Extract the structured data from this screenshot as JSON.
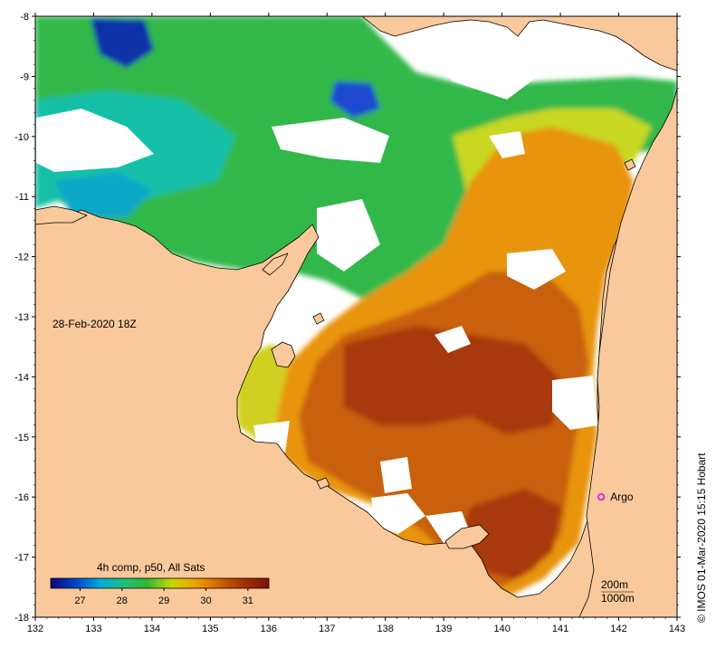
{
  "map": {
    "date_label": "28-Feb-2020 18Z",
    "credit": "© IMOS 01-Mar-2020 15:15 Hobart",
    "x_range": [
      132,
      143
    ],
    "y_range": [
      -18,
      -8
    ],
    "x_ticks": [
      "132",
      "133",
      "134",
      "135",
      "136",
      "137",
      "138",
      "139",
      "140",
      "141",
      "142",
      "143"
    ],
    "y_ticks": [
      "-8",
      "-9",
      "-10",
      "-11",
      "-12",
      "-13",
      "-14",
      "-15",
      "-16",
      "-17",
      "-18"
    ],
    "colors": {
      "land": "#f9c99c",
      "no_data": "#ffffff",
      "frame": "#000000",
      "argo": "#cc33cc"
    }
  },
  "colorbar": {
    "title": "4h comp, p50, All Sats",
    "range": [
      26.3,
      31.5
    ],
    "ticks": [
      "27",
      "28",
      "29",
      "30",
      "31"
    ],
    "stops": [
      "#0a0a78",
      "#0040c8",
      "#00a8e0",
      "#20c080",
      "#30b830",
      "#c8d800",
      "#f0a000",
      "#d06000",
      "#a03000",
      "#801010"
    ]
  },
  "scale": {
    "depth_label_1": "200m",
    "depth_label_2": "1000m"
  },
  "markers": [
    {
      "name": "Argo",
      "lon": 141.7,
      "lat": -16.0
    }
  ]
}
